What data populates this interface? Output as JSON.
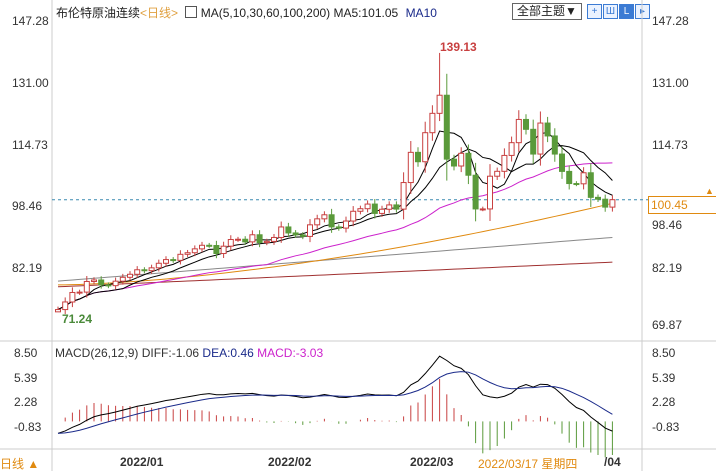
{
  "header": {
    "instrument": "布伦特原油连续",
    "period": "<日线>",
    "ma_label": "MA(5,10,30,60,100,200)",
    "ma5": "MA5:101.05",
    "ma10": "MA10",
    "theme_button": "全部主题▼"
  },
  "toolbar_icons": [
    "grid-icon",
    "layout-icon",
    "bar-icon",
    "exit-icon"
  ],
  "price_axis": {
    "left": [
      "147.28",
      "131.00",
      "114.73",
      "98.46",
      "82.19"
    ],
    "right": [
      "147.28",
      "131.00",
      "114.73",
      "98.46",
      "82.19",
      "69.87"
    ],
    "current": "100.45",
    "high_label": "139.13",
    "low_label": "71.24"
  },
  "macd_header": {
    "label": "MACD(26,12,9)",
    "diff": "DIFF:-1.06",
    "dea": "DEA:0.46",
    "macd": "MACD:-3.03"
  },
  "macd_axis": [
    "8.50",
    "5.39",
    "2.28",
    "-0.83"
  ],
  "bottom": {
    "period": "日线",
    "arrow": "▲",
    "dates": [
      "2022/01",
      "2022/02",
      "2022/03"
    ],
    "cursor_date": "2022/03/17 星期四",
    "last": "/04"
  },
  "colors": {
    "up": "#c84040",
    "down": "#5a9a3a",
    "ma5": "#000000",
    "ma10": "#000000",
    "ma30": "#cc22cc",
    "ma60": "#e08a10",
    "ma100": "#888888",
    "ma200": "#a03030"
  },
  "chart_data": {
    "type": "candlestick",
    "closes": [
      71.5,
      73.5,
      76,
      76.1,
      78.9,
      79.3,
      78,
      77.8,
      78.98,
      80,
      80.8,
      81.99,
      81.75,
      82.5,
      83.7,
      84.67,
      84.47,
      86.06,
      86.48,
      87.5,
      88.44,
      88.38,
      86.27,
      88.2,
      89.96,
      90.03,
      89.34,
      91.21,
      89.16,
      89.47,
      90.5,
      93.27,
      91.69,
      91.18,
      90.78,
      93.83,
      95.41,
      96.48,
      93.28,
      92.97,
      94.83,
      97.4,
      98.08,
      99.3,
      96.84,
      97.93,
      99.08,
      97.97,
      104.97,
      112.93,
      110.46,
      118.11,
      123.21,
      127.98,
      111.14,
      109.33,
      112.67,
      106.9,
      98.02,
      98.02,
      106.64,
      107.93,
      112.12,
      115.48,
      121.6,
      119,
      112.48,
      120.65,
      117.25,
      112.48,
      107.91,
      104.71,
      104.64,
      107.55,
      101.07,
      100.58,
      98.5,
      100.45
    ],
    "first_open": 70.9,
    "high": 139.13,
    "high_index": 53,
    "low": 71.24,
    "long_ma": {
      "ma60": [
        78,
        99.5
      ],
      "ma100": [
        79,
        90.5
      ],
      "ma200": [
        77.5,
        84
      ]
    },
    "ylim": [
      69.87,
      147.28
    ],
    "macd_ylim": [
      -4,
      9
    ]
  }
}
